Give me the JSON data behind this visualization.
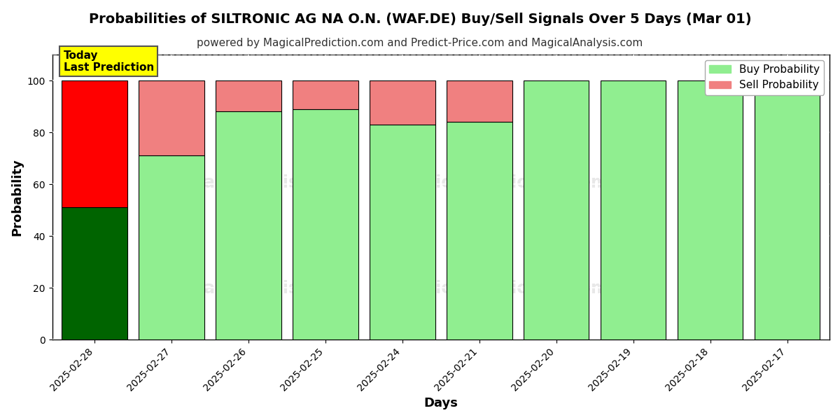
{
  "title": "Probabilities of SILTRONIC AG NA O.N. (WAF.DE) Buy/Sell Signals Over 5 Days (Mar 01)",
  "subtitle": "powered by MagicalPrediction.com and Predict-Price.com and MagicalAnalysis.com",
  "xlabel": "Days",
  "ylabel": "Probability",
  "categories": [
    "2025-02-28",
    "2025-02-27",
    "2025-02-26",
    "2025-02-25",
    "2025-02-24",
    "2025-02-21",
    "2025-02-20",
    "2025-02-19",
    "2025-02-18",
    "2025-02-17"
  ],
  "buy_values": [
    51,
    71,
    88,
    89,
    83,
    84,
    100,
    100,
    100,
    95
  ],
  "sell_values": [
    49,
    29,
    12,
    11,
    17,
    16,
    0,
    0,
    0,
    5
  ],
  "today_index": 0,
  "buy_color_today": "#006400",
  "sell_color_today": "#ff0000",
  "buy_color_normal": "#90EE90",
  "sell_color_normal": "#f08080",
  "bar_edgecolor": "#000000",
  "ylim": [
    0,
    110
  ],
  "dashed_line_y": 110,
  "legend_buy": "Buy Probability",
  "legend_sell": "Sell Probability",
  "today_label": "Today\nLast Prediction",
  "today_label_bg": "#ffff00",
  "grid_color": "#ffffff",
  "plot_bg_color": "#ffffff",
  "fig_bg_color": "#ffffff",
  "title_fontsize": 14,
  "subtitle_fontsize": 11,
  "axis_label_fontsize": 13,
  "tick_fontsize": 10,
  "legend_fontsize": 11,
  "bar_width": 0.85
}
